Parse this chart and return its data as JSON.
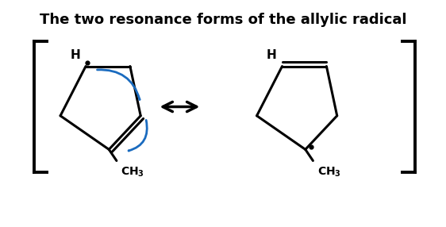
{
  "title": "The two resonance forms of the allylic radical",
  "title_fontsize": 13,
  "title_fontweight": "bold",
  "bg_color": "#ffffff",
  "bracket_color": "#000000",
  "arrow_color": "#000000",
  "blue_arrow_color": "#1a6bbf",
  "bond_color": "#000000",
  "text_color": "#000000",
  "figsize": [
    5.62,
    2.86
  ],
  "dpi": 100
}
